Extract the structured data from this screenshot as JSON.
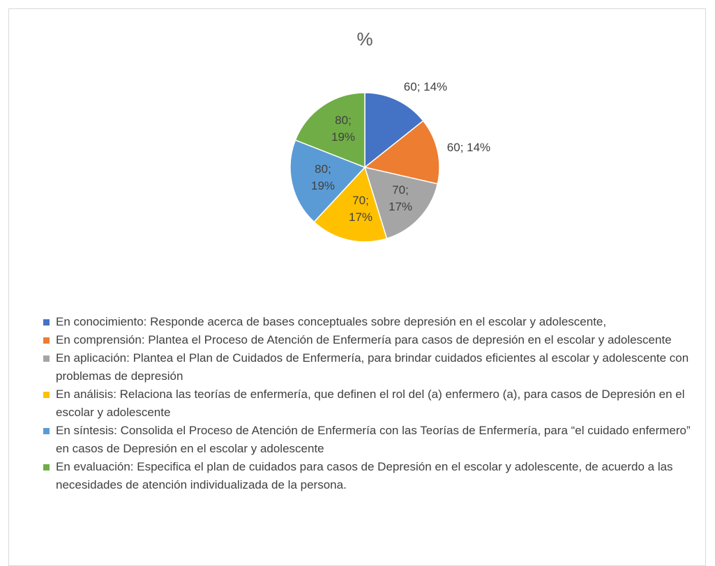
{
  "chart_data": {
    "type": "pie",
    "title": "%",
    "categories": [
      "En conocimiento: Responde acerca de bases conceptuales sobre depresión en el escolar y adolescente,",
      "En comprensión: Plantea el Proceso de Atención de Enfermería para casos de depresión en el escolar y adolescente",
      "En aplicación: Plantea el Plan de Cuidados de Enfermería, para brindar cuidados eficientes al escolar y adolescente con problemas de depresión",
      "En análisis: Relaciona las teorías de enfermería, que definen el rol del (a) enfermero (a), para casos de Depresión en el escolar y adolescente",
      "En síntesis: Consolida el Proceso de Atención de Enfermería con las Teorías de Enfermería, para “el cuidado enfermero” en casos de Depresión en el escolar y adolescente",
      "En evaluación:  Especifica el plan de cuidados para casos de Depresión en el escolar y adolescente, de acuerdo a las necesidades de atención individualizada de la persona."
    ],
    "values": [
      60,
      60,
      70,
      70,
      80,
      80
    ],
    "value_labels": [
      "60; 14%",
      "60; 14%",
      "70; 17%",
      "70; 17%",
      "80; 19%",
      "80; 19%"
    ],
    "colors": [
      "#4472c4",
      "#ed7d31",
      "#a5a5a5",
      "#ffc000",
      "#5b9bd5",
      "#70ad47"
    ],
    "legend": "bottom"
  }
}
